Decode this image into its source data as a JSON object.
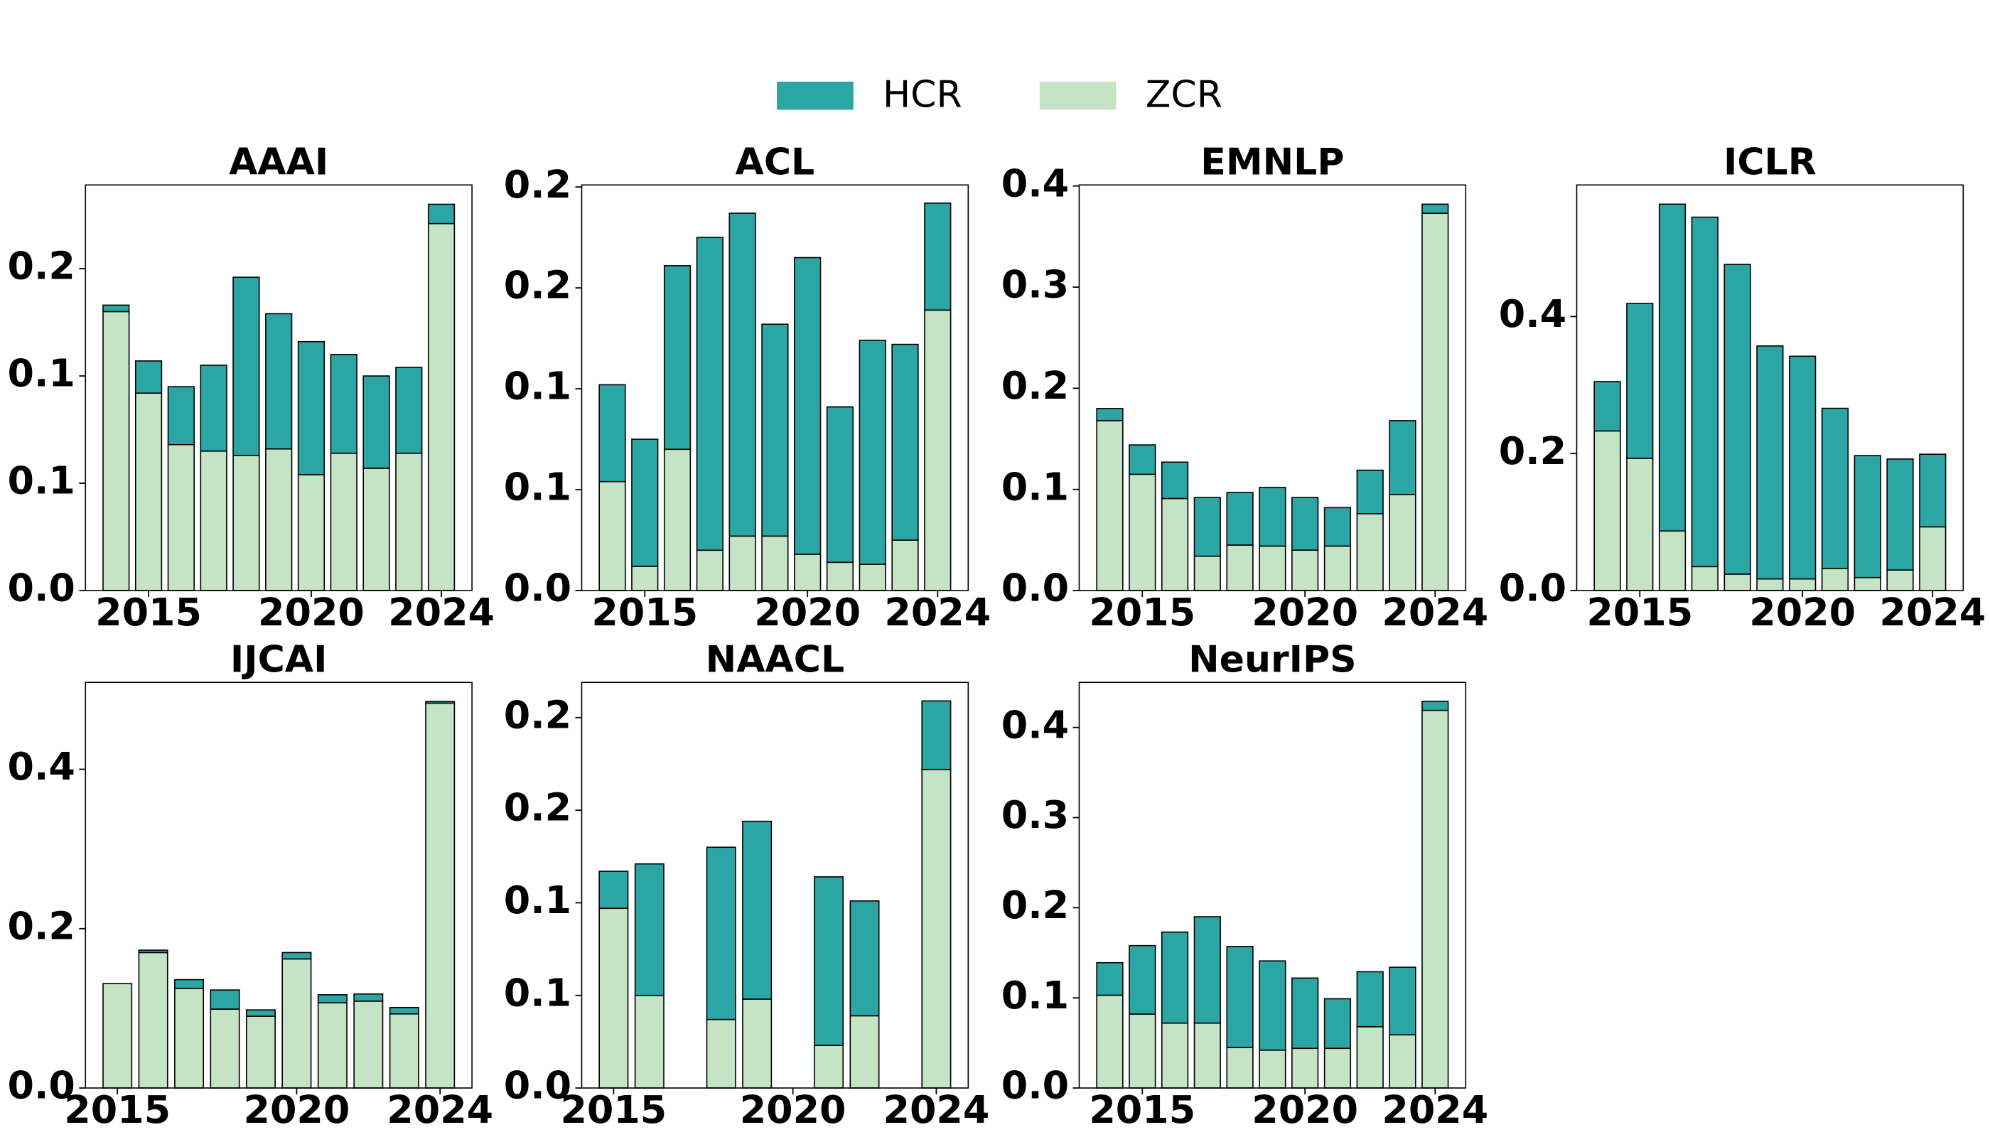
{
  "chart_data": [
    {
      "type": "bar",
      "stacked": true,
      "title": "AAAI",
      "x": [
        2014,
        2015,
        2016,
        2017,
        2018,
        2019,
        2020,
        2021,
        2022,
        2023,
        2024
      ],
      "series": [
        {
          "name": "ZCR",
          "color": "#c5e3c5",
          "values": [
            0.13,
            0.092,
            0.068,
            0.065,
            0.063,
            0.066,
            0.054,
            0.064,
            0.057,
            0.064,
            0.171
          ]
        },
        {
          "name": "HCR",
          "color": "#2ca6a4",
          "values": [
            0.003,
            0.015,
            0.027,
            0.04,
            0.083,
            0.063,
            0.062,
            0.046,
            0.043,
            0.04,
            0.009
          ]
        }
      ],
      "xlim": [
        2013.06,
        2024.94
      ],
      "xticks": [
        2015,
        2020,
        2024
      ],
      "ylim": [
        0,
        0.189
      ],
      "yticks": [
        {
          "value": 0,
          "label": "0.0"
        },
        {
          "value": 0.05,
          "label": "0.1"
        },
        {
          "value": 0.1,
          "label": "0.1"
        },
        {
          "value": 0.15,
          "label": "0.2"
        }
      ]
    },
    {
      "type": "bar",
      "stacked": true,
      "title": "ACL",
      "x": [
        2014,
        2015,
        2016,
        2017,
        2018,
        2019,
        2020,
        2021,
        2022,
        2023,
        2024
      ],
      "series": [
        {
          "name": "ZCR",
          "color": "#c5e3c5",
          "values": [
            0.054,
            0.012,
            0.07,
            0.02,
            0.027,
            0.027,
            0.018,
            0.014,
            0.013,
            0.025,
            0.139
          ]
        },
        {
          "name": "HCR",
          "color": "#2ca6a4",
          "values": [
            0.048,
            0.063,
            0.091,
            0.155,
            0.16,
            0.105,
            0.147,
            0.077,
            0.111,
            0.097,
            0.053
          ]
        }
      ],
      "xlim": [
        2013.06,
        2024.94
      ],
      "xticks": [
        2015,
        2020,
        2024
      ],
      "ylim": [
        0,
        0.201
      ],
      "yticks": [
        {
          "value": 0,
          "label": "0.0"
        },
        {
          "value": 0.05,
          "label": "0.1"
        },
        {
          "value": 0.1,
          "label": "0.1"
        },
        {
          "value": 0.15,
          "label": "0.2"
        },
        {
          "value": 0.2,
          "label": "0.2"
        }
      ]
    },
    {
      "type": "bar",
      "stacked": true,
      "title": "EMNLP",
      "x": [
        2014,
        2015,
        2016,
        2017,
        2018,
        2019,
        2020,
        2021,
        2022,
        2023,
        2024
      ],
      "series": [
        {
          "name": "ZCR",
          "color": "#c5e3c5",
          "values": [
            0.168,
            0.115,
            0.091,
            0.034,
            0.045,
            0.044,
            0.04,
            0.044,
            0.076,
            0.095,
            0.373
          ]
        },
        {
          "name": "HCR",
          "color": "#2ca6a4",
          "values": [
            0.012,
            0.029,
            0.036,
            0.058,
            0.052,
            0.058,
            0.052,
            0.038,
            0.043,
            0.073,
            0.009
          ]
        }
      ],
      "xlim": [
        2013.06,
        2024.94
      ],
      "xticks": [
        2015,
        2020,
        2024
      ],
      "ylim": [
        0,
        0.401
      ],
      "yticks": [
        {
          "value": 0,
          "label": "0.0"
        },
        0.1,
        0.2,
        0.3,
        0.4
      ]
    },
    {
      "type": "bar",
      "stacked": true,
      "title": "ICLR",
      "x": [
        2014,
        2015,
        2016,
        2017,
        2018,
        2019,
        2020,
        2021,
        2022,
        2023,
        2024
      ],
      "series": [
        {
          "name": "ZCR",
          "color": "#c5e3c5",
          "values": [
            0.233,
            0.193,
            0.087,
            0.035,
            0.024,
            0.017,
            0.017,
            0.032,
            0.019,
            0.03,
            0.093
          ]
        },
        {
          "name": "HCR",
          "color": "#2ca6a4",
          "values": [
            0.072,
            0.226,
            0.477,
            0.51,
            0.452,
            0.34,
            0.325,
            0.234,
            0.178,
            0.162,
            0.106
          ]
        }
      ],
      "xlim": [
        2013.06,
        2024.94
      ],
      "xticks": [
        2015,
        2020,
        2024
      ],
      "ylim": [
        0,
        0.592
      ],
      "yticks": [
        {
          "value": 0,
          "label": "0.0"
        },
        0.2,
        0.4
      ]
    },
    {
      "type": "bar",
      "stacked": true,
      "title": "IJCAI",
      "x": [
        2015,
        2016,
        2017,
        2018,
        2019,
        2020,
        2021,
        2022,
        2023,
        2024
      ],
      "series": [
        {
          "name": "ZCR",
          "color": "#c5e3c5",
          "values": [
            0.131,
            0.17,
            0.125,
            0.099,
            0.09,
            0.162,
            0.107,
            0.109,
            0.093,
            0.483
          ]
        },
        {
          "name": "HCR",
          "color": "#2ca6a4",
          "values": [
            0,
            0.003,
            0.011,
            0.024,
            0.008,
            0.008,
            0.01,
            0.009,
            0.008,
            0.002
          ]
        }
      ],
      "xlim": [
        2014.11,
        2024.89
      ],
      "xticks": [
        2015,
        2020,
        2024
      ],
      "ylim": [
        0,
        0.509
      ],
      "yticks": [
        {
          "value": 0,
          "label": "0.0"
        },
        0.2,
        0.4
      ]
    },
    {
      "type": "bar",
      "stacked": true,
      "title": "NAACL",
      "x": [
        2015,
        2016,
        2018,
        2019,
        2021,
        2022,
        2024
      ],
      "series": [
        {
          "name": "ZCR",
          "color": "#c5e3c5",
          "values": [
            0.097,
            0.05,
            0.037,
            0.048,
            0.023,
            0.039,
            0.172
          ]
        },
        {
          "name": "HCR",
          "color": "#2ca6a4",
          "values": [
            0.02,
            0.071,
            0.093,
            0.096,
            0.091,
            0.062,
            0.037
          ]
        }
      ],
      "xlim": [
        2014.11,
        2024.89
      ],
      "xticks": [
        2015,
        2020,
        2024
      ],
      "ylim": [
        0,
        0.219
      ],
      "yticks": [
        {
          "value": 0,
          "label": "0.0"
        },
        {
          "value": 0.05,
          "label": "0.1"
        },
        {
          "value": 0.1,
          "label": "0.1"
        },
        {
          "value": 0.15,
          "label": "0.2"
        },
        {
          "value": 0.2,
          "label": "0.2"
        }
      ]
    },
    {
      "type": "bar",
      "stacked": true,
      "title": "NeurIPS",
      "x": [
        2014,
        2015,
        2016,
        2017,
        2018,
        2019,
        2020,
        2021,
        2022,
        2023,
        2024
      ],
      "series": [
        {
          "name": "ZCR",
          "color": "#c5e3c5",
          "values": [
            0.103,
            0.082,
            0.072,
            0.072,
            0.045,
            0.042,
            0.044,
            0.044,
            0.068,
            0.059,
            0.419
          ]
        },
        {
          "name": "HCR",
          "color": "#2ca6a4",
          "values": [
            0.036,
            0.076,
            0.101,
            0.118,
            0.112,
            0.099,
            0.078,
            0.055,
            0.061,
            0.075,
            0.01
          ]
        }
      ],
      "xlim": [
        2013.06,
        2024.94
      ],
      "xticks": [
        2015,
        2020,
        2024
      ],
      "ylim": [
        0,
        0.45
      ],
      "yticks": [
        {
          "value": 0,
          "label": "0.0"
        },
        0.1,
        0.2,
        0.3,
        0.4
      ]
    }
  ]
}
